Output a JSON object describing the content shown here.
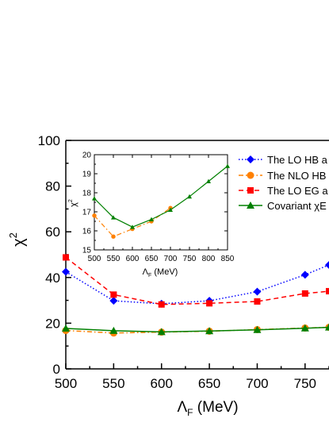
{
  "chart_data": [
    {
      "type": "line",
      "role": "main",
      "xlabel_symbol": "Λ",
      "xlabel_sub": "F",
      "xlabel_unit": " (MeV)",
      "ylabel_symbol": "χ",
      "ylabel_sup": "2",
      "xlim": [
        500,
        775
      ],
      "ylim": [
        0,
        100
      ],
      "xticks": [
        "500",
        "550",
        "600",
        "650",
        "700",
        "750"
      ],
      "yticks": [
        "0",
        "20",
        "40",
        "60",
        "80",
        "100"
      ],
      "legend_position": "top-right (partially cut off)",
      "series": [
        {
          "name": "The LO HB a",
          "color": "#0000ff",
          "marker": "diamond",
          "dash": "dotted",
          "x": [
            500,
            550,
            600,
            650,
            700,
            750,
            775
          ],
          "y": [
            42.5,
            29.8,
            28.5,
            29.8,
            33.8,
            41.2,
            45.5
          ]
        },
        {
          "name": "The NLO HB",
          "color": "#ff8000",
          "marker": "circle",
          "dash": "dashdot",
          "x": [
            500,
            550,
            600,
            650,
            700,
            750,
            775
          ],
          "y": [
            16.8,
            15.7,
            16.1,
            16.5,
            17.2,
            17.9,
            18.2
          ]
        },
        {
          "name": "The LO EG a",
          "color": "#ff0000",
          "marker": "square",
          "dash": "dashed",
          "x": [
            500,
            550,
            600,
            650,
            700,
            750,
            775
          ],
          "y": [
            48.8,
            32.5,
            28.2,
            28.7,
            29.5,
            33.0,
            34.0
          ]
        },
        {
          "name": "Covariant χE",
          "color": "#008000",
          "marker": "triangle",
          "dash": "solid",
          "x": [
            500,
            550,
            600,
            650,
            700,
            750,
            775
          ],
          "y": [
            17.7,
            16.7,
            16.2,
            16.6,
            17.1,
            17.8,
            18.2
          ]
        }
      ]
    },
    {
      "type": "line",
      "role": "inset",
      "xlabel_symbol": "Λ",
      "xlabel_sub": "F",
      "xlabel_unit": " (MeV)",
      "ylabel_symbol": "χ",
      "ylabel_sup": "2",
      "xlim": [
        500,
        850
      ],
      "ylim": [
        15,
        20
      ],
      "xticks": [
        "500",
        "550",
        "600",
        "650",
        "700",
        "750",
        "800",
        "850"
      ],
      "yticks": [
        "15",
        "16",
        "17",
        "18",
        "19",
        "20"
      ],
      "series": [
        {
          "name": "NLO HB",
          "color": "#ff8000",
          "marker": "circle",
          "dash": "dashdot",
          "x": [
            500,
            550,
            600,
            650,
            700
          ],
          "y": [
            16.8,
            15.7,
            16.1,
            16.5,
            17.2
          ]
        },
        {
          "name": "Covariant",
          "color": "#008000",
          "marker": "triangle",
          "dash": "solid",
          "x": [
            500,
            550,
            600,
            650,
            700,
            750,
            800,
            850
          ],
          "y": [
            17.7,
            16.7,
            16.2,
            16.6,
            17.1,
            17.8,
            18.6,
            19.4
          ]
        }
      ]
    }
  ]
}
